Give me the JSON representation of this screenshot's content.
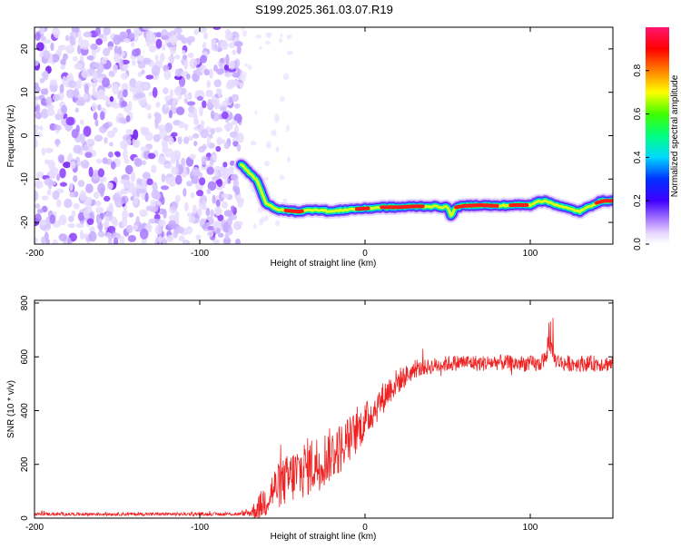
{
  "title": "S199.2025.361.03.07.R19",
  "chart_data": [
    {
      "type": "heatmap",
      "name": "spectrogram",
      "xlabel": "Height of straight line (km)",
      "ylabel": "Frequency (Hz)",
      "xlim": [
        -200,
        150
      ],
      "ylim": [
        -25,
        25
      ],
      "xticks": [
        -200,
        -100,
        0,
        100
      ],
      "yticks": [
        -20,
        -10,
        0,
        10,
        20
      ],
      "noise_region_x": [
        -200,
        -75
      ],
      "ridge": {
        "x": [
          -75,
          -70,
          -65,
          -62,
          -60,
          -55,
          -50,
          -40,
          -30,
          -20,
          -10,
          0,
          10,
          20,
          30,
          40,
          50,
          52,
          55,
          60,
          70,
          80,
          90,
          100,
          105,
          110,
          115,
          120,
          125,
          130,
          135,
          140,
          145,
          150
        ],
        "y": [
          -6.5,
          -8.5,
          -10.5,
          -13.5,
          -15.5,
          -16.8,
          -17.2,
          -17.5,
          -17.0,
          -17.5,
          -17.0,
          -16.8,
          -16.5,
          -16.5,
          -16.3,
          -16.3,
          -16.5,
          -18.5,
          -16.5,
          -16.2,
          -16.0,
          -16.2,
          -16.0,
          -16.0,
          -15.0,
          -15.2,
          -15.8,
          -16.5,
          -17.0,
          -17.5,
          -16.5,
          -15.5,
          -15.0,
          -15.0
        ]
      },
      "colorbar": {
        "label": "Normalized spectral amplitude",
        "range": [
          0,
          1
        ],
        "ticks": [
          0.0,
          0.2,
          0.4,
          0.6,
          0.8
        ],
        "tick_labels": [
          "0.0",
          "0.2",
          "0.4",
          "0.6",
          "0.8"
        ],
        "colors": [
          "#ffffff",
          "#c8a8ff",
          "#7a00ff",
          "#0000ff",
          "#00d8ff",
          "#00ff00",
          "#ffff00",
          "#ff8000",
          "#ff0000",
          "#ff1493"
        ]
      }
    },
    {
      "type": "line",
      "name": "snr",
      "xlabel": "Height of straight line (km)",
      "ylabel": "SNR (10 * v/v)",
      "xlim": [
        -200,
        150
      ],
      "ylim": [
        0,
        810
      ],
      "xticks": [
        -200,
        -100,
        0,
        100
      ],
      "yticks": [
        0,
        200,
        400,
        600,
        800
      ],
      "color": "#ee2222",
      "envelope": {
        "x": [
          -200,
          -150,
          -100,
          -75,
          -70,
          -65,
          -60,
          -55,
          -50,
          -45,
          -40,
          -35,
          -30,
          -25,
          -20,
          -15,
          -10,
          -5,
          0,
          5,
          10,
          15,
          20,
          25,
          30,
          40,
          50,
          60,
          70,
          80,
          90,
          100,
          105,
          110,
          112,
          115,
          120,
          130,
          140,
          150
        ],
        "y": [
          15,
          15,
          15,
          15,
          20,
          35,
          70,
          110,
          130,
          150,
          170,
          190,
          200,
          220,
          240,
          260,
          290,
          320,
          360,
          400,
          440,
          480,
          510,
          530,
          550,
          565,
          575,
          580,
          575,
          580,
          575,
          575,
          570,
          600,
          640,
          590,
          575,
          575,
          575,
          575
        ]
      },
      "spread": {
        "x": [
          -200,
          -75,
          -70,
          -60,
          -50,
          -40,
          -30,
          -20,
          -10,
          0,
          10,
          20,
          30,
          50,
          100,
          150
        ],
        "y": [
          6,
          6,
          15,
          70,
          90,
          110,
          110,
          100,
          90,
          70,
          60,
          50,
          30,
          30,
          30,
          30
        ]
      }
    }
  ]
}
